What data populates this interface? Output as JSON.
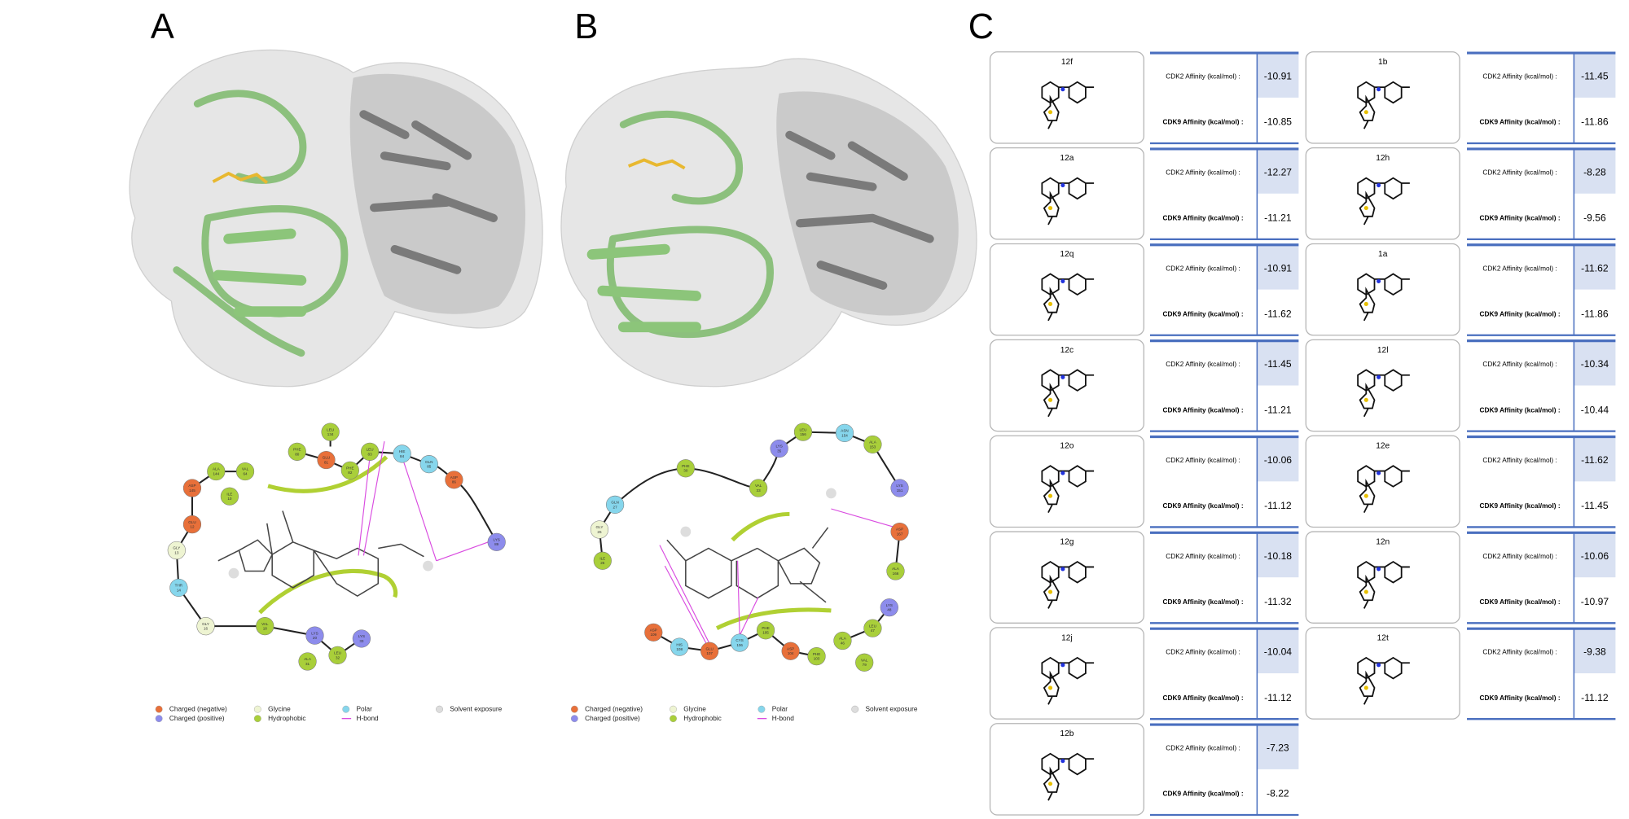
{
  "panels": {
    "A": {
      "label": "A",
      "residues": [
        {
          "name": "LEU",
          "number": 134
        },
        {
          "name": "PHE",
          "number": 80
        },
        {
          "name": "GLU",
          "number": 81
        },
        {
          "name": "PHE",
          "number": 82
        },
        {
          "name": "LEU",
          "number": 83
        },
        {
          "name": "HIE",
          "number": 84
        },
        {
          "name": "GLN",
          "number": 85
        },
        {
          "name": "ASP",
          "number": 86
        },
        {
          "name": "ALA",
          "number": 144
        },
        {
          "name": "VAL",
          "number": 64
        },
        {
          "name": "ASP",
          "number": 145
        },
        {
          "name": "ILE",
          "number": 10
        },
        {
          "name": "GLU",
          "number": 12
        },
        {
          "name": "GLY",
          "number": 13
        },
        {
          "name": "THR",
          "number": 14
        },
        {
          "name": "GLY",
          "number": 16
        },
        {
          "name": "VAL",
          "number": 18
        },
        {
          "name": "LYS",
          "number": 20
        },
        {
          "name": "LYS",
          "number": 33
        },
        {
          "name": "ALA",
          "number": 31
        },
        {
          "name": "LEU",
          "number": 32
        },
        {
          "name": "LYS",
          "number": 89
        }
      ]
    },
    "B": {
      "label": "B",
      "residues": [
        {
          "name": "LEU",
          "number": 156
        },
        {
          "name": "ASN",
          "number": 154
        },
        {
          "name": "ALA",
          "number": 153
        },
        {
          "name": "LYS",
          "number": 35
        },
        {
          "name": "LYS",
          "number": 151
        },
        {
          "name": "PHE",
          "number": 30
        },
        {
          "name": "VAL",
          "number": 33
        },
        {
          "name": "GLN",
          "number": 27
        },
        {
          "name": "GLY",
          "number": 26
        },
        {
          "name": "ILE",
          "number": 25
        },
        {
          "name": "ASP",
          "number": 167
        },
        {
          "name": "ALA",
          "number": 166
        },
        {
          "name": "LYS",
          "number": 48
        },
        {
          "name": "LEU",
          "number": 47
        },
        {
          "name": "ALA",
          "number": 46
        },
        {
          "name": "VAL",
          "number": 79
        },
        {
          "name": "ASP",
          "number": 109
        },
        {
          "name": "HIS",
          "number": 108
        },
        {
          "name": "GLU",
          "number": 107
        },
        {
          "name": "CYS",
          "number": 106
        },
        {
          "name": "PHE",
          "number": 105
        },
        {
          "name": "ASP",
          "number": 104
        },
        {
          "name": "PHE",
          "number": 103
        }
      ]
    },
    "C": {
      "label": "C"
    }
  },
  "legend": [
    "Charged (negative)",
    "Charged (positive)",
    "Glycine",
    "Hydrophobic",
    "Polar",
    "H-bond",
    "Solvent exposure"
  ],
  "affinity": {
    "cdk2_label": "CDK2 Affinity (kcal/mol) :",
    "cdk9_label": "CDK9 Affinity (kcal/mol) :",
    "compounds": [
      {
        "name": "12f",
        "cdk2": -10.91,
        "cdk9": -10.85
      },
      {
        "name": "12a",
        "cdk2": -12.27,
        "cdk9": -11.21
      },
      {
        "name": "12q",
        "cdk2": -10.91,
        "cdk9": -11.62
      },
      {
        "name": "12c",
        "cdk2": -11.45,
        "cdk9": -11.21
      },
      {
        "name": "12o",
        "cdk2": -10.06,
        "cdk9": -11.12
      },
      {
        "name": "12g",
        "cdk2": -10.18,
        "cdk9": -11.32
      },
      {
        "name": "12j",
        "cdk2": -10.04,
        "cdk9": -11.12
      },
      {
        "name": "12b",
        "cdk2": -7.23,
        "cdk9": -8.22
      },
      {
        "name": "1b",
        "cdk2": -11.45,
        "cdk9": -11.86
      },
      {
        "name": "12h",
        "cdk2": -8.28,
        "cdk9": -9.56
      },
      {
        "name": "1a",
        "cdk2": -11.62,
        "cdk9": -11.86
      },
      {
        "name": "12l",
        "cdk2": -10.34,
        "cdk9": -10.44
      },
      {
        "name": "12e",
        "cdk2": -11.62,
        "cdk9": -11.45
      },
      {
        "name": "12n",
        "cdk2": -10.06,
        "cdk9": -10.97
      },
      {
        "name": "12t",
        "cdk2": -9.38,
        "cdk9": -11.12
      }
    ]
  }
}
